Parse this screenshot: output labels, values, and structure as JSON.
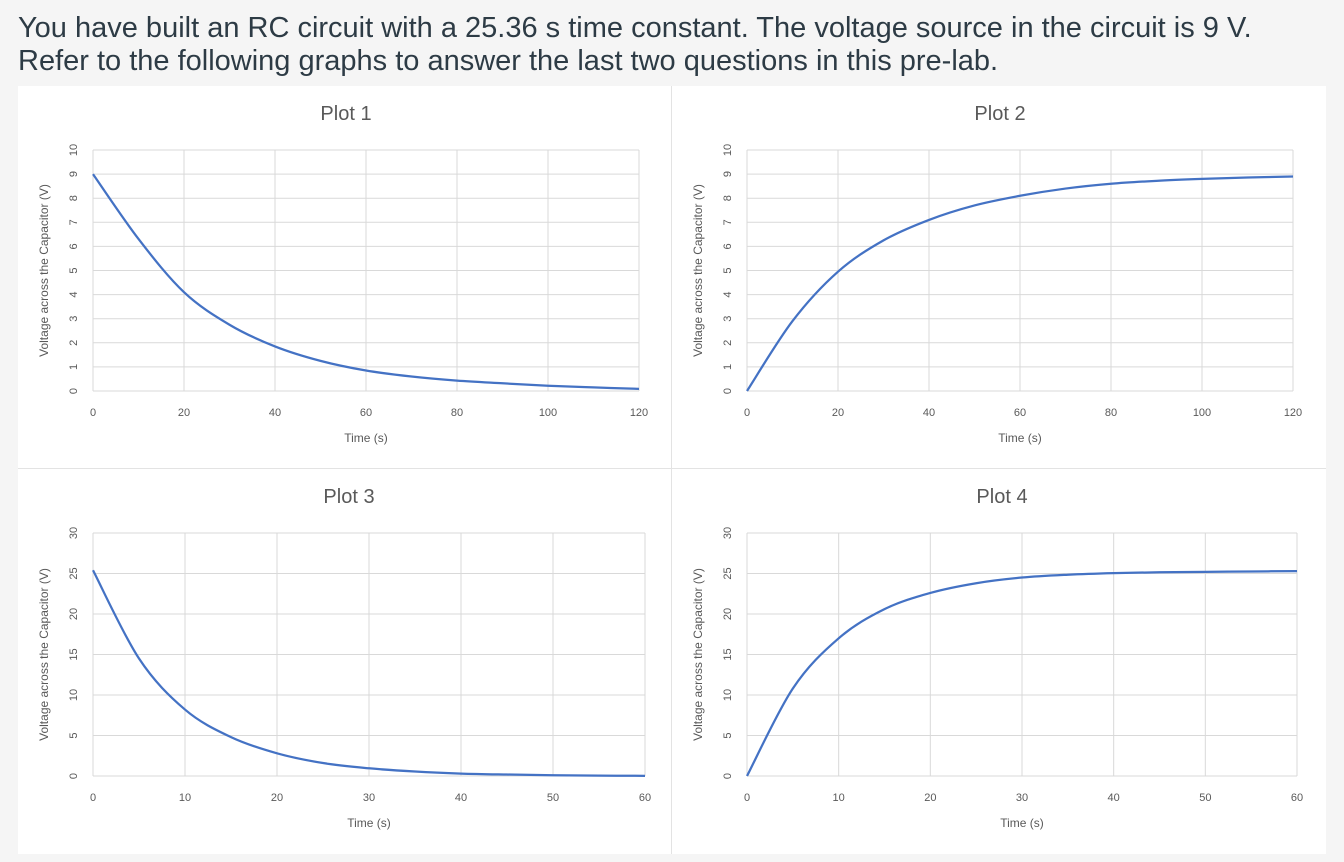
{
  "question": "You have built an RC circuit with a 25.36 s time constant. The voltage source in the circuit is 9 V. Refer to the following graphs to answer the last two questions in this pre-lab.",
  "colors": {
    "curve": "#4472c4",
    "grid": "#d9d9d9",
    "text": "#595959"
  },
  "chart_data": [
    {
      "type": "line",
      "title": "Plot 1",
      "xlabel": "Time (s)",
      "ylabel": "Voltage across the Capacitor (V)",
      "xlim": [
        0,
        120
      ],
      "ylim": [
        0,
        10
      ],
      "xticks": [
        0,
        20,
        40,
        60,
        80,
        100,
        120
      ],
      "yticks": [
        0,
        1,
        2,
        3,
        4,
        5,
        6,
        7,
        8,
        9,
        10
      ],
      "grid": true,
      "legend": "none",
      "series": [
        {
          "x": [
            0,
            10,
            20,
            30,
            40,
            50,
            60,
            70,
            80,
            90,
            100,
            110,
            120
          ],
          "y": [
            9.0,
            6.31,
            4.1,
            2.75,
            1.85,
            1.25,
            0.85,
            0.6,
            0.43,
            0.32,
            0.22,
            0.15,
            0.09
          ]
        }
      ]
    },
    {
      "type": "line",
      "title": "Plot 2",
      "xlabel": "Time (s)",
      "ylabel": "Voltage across the Capacitor (V)",
      "xlim": [
        0,
        120
      ],
      "ylim": [
        0,
        10
      ],
      "xticks": [
        0,
        20,
        40,
        60,
        80,
        100,
        120
      ],
      "yticks": [
        0,
        1,
        2,
        3,
        4,
        5,
        6,
        7,
        8,
        9,
        10
      ],
      "grid": true,
      "legend": "none",
      "series": [
        {
          "x": [
            0,
            10,
            20,
            30,
            40,
            50,
            60,
            70,
            80,
            90,
            100,
            110,
            120
          ],
          "y": [
            0,
            2.9,
            4.95,
            6.25,
            7.1,
            7.7,
            8.1,
            8.4,
            8.6,
            8.72,
            8.8,
            8.86,
            8.9
          ]
        }
      ]
    },
    {
      "type": "line",
      "title": "Plot 3",
      "xlabel": "Time (s)",
      "ylabel": "Voltage across the Capacitor (V)",
      "xlim": [
        0,
        60
      ],
      "ylim": [
        0,
        30
      ],
      "xticks": [
        0,
        10,
        20,
        30,
        40,
        50,
        60
      ],
      "yticks": [
        0,
        5,
        10,
        15,
        20,
        25,
        30
      ],
      "grid": true,
      "legend": "none",
      "series": [
        {
          "x": [
            0,
            5,
            10,
            15,
            20,
            25,
            30,
            35,
            40,
            45,
            50,
            55,
            60
          ],
          "y": [
            25.4,
            14.5,
            8.2,
            4.8,
            2.8,
            1.6,
            0.95,
            0.55,
            0.3,
            0.18,
            0.1,
            0.05,
            0.02
          ]
        }
      ]
    },
    {
      "type": "line",
      "title": "Plot 4",
      "xlabel": "Time (s)",
      "ylabel": "Voltage across the Capacitor (V)",
      "xlim": [
        0,
        60
      ],
      "ylim": [
        0,
        30
      ],
      "xticks": [
        0,
        10,
        20,
        30,
        40,
        50,
        60
      ],
      "yticks": [
        0,
        5,
        10,
        15,
        20,
        25,
        30
      ],
      "grid": true,
      "legend": "none",
      "series": [
        {
          "x": [
            0,
            5,
            10,
            15,
            20,
            25,
            30,
            35,
            40,
            45,
            50,
            55,
            60
          ],
          "y": [
            0,
            10.8,
            17.0,
            20.6,
            22.6,
            23.8,
            24.5,
            24.85,
            25.05,
            25.15,
            25.2,
            25.25,
            25.3
          ]
        }
      ]
    }
  ]
}
